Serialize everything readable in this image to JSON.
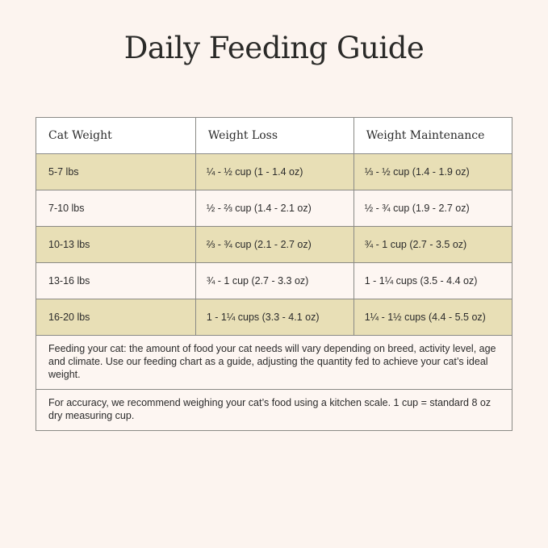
{
  "title": "Daily Feeding Guide",
  "table": {
    "headers": [
      "Cat Weight",
      "Weight Loss",
      "Weight Maintenance"
    ],
    "rows": [
      [
        "5-7 lbs",
        "¼ - ½ cup (1 - 1.4 oz)",
        "⅓ - ½ cup (1.4 - 1.9 oz)"
      ],
      [
        "7-10 lbs",
        "½ - ⅔ cup (1.4 - 2.1 oz)",
        "½ - ¾ cup (1.9 - 2.7 oz)"
      ],
      [
        "10-13 lbs",
        "⅔ - ¾ cup (2.1 - 2.7 oz)",
        "¾ - 1 cup (2.7 - 3.5 oz)"
      ],
      [
        "13-16 lbs",
        "¾ - 1 cup (2.7 - 3.3 oz)",
        "1 - 1¼ cups (3.5 - 4.4 oz)"
      ],
      [
        "16-20 lbs",
        "1 - 1¼ cups (3.3 - 4.1 oz)",
        "1¼ - 1½ cups (4.4 - 5.5 oz)"
      ]
    ],
    "notes": [
      "Feeding your cat: the amount of food your cat needs will vary depending on breed, activity level, age and climate. Use our feeding chart as a guide, adjusting the quantity fed to achieve your cat’s ideal weight.",
      "For accuracy, we recommend weighing your cat’s food using a kitchen scale. 1 cup = standard 8 oz dry measuring cup."
    ]
  },
  "colors": {
    "background": "#fcf4ef",
    "row_tan": "#e8dfb6",
    "row_light": "#fdf6f2"
  }
}
